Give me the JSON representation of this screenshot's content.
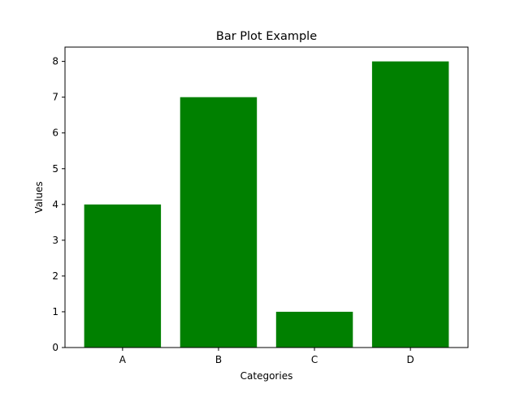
{
  "chart_data": {
    "type": "bar",
    "title": "Bar Plot Example",
    "xlabel": "Categories",
    "ylabel": "Values",
    "categories": [
      "A",
      "B",
      "C",
      "D"
    ],
    "values": [
      4,
      7,
      1,
      8
    ],
    "ylim": [
      0,
      8.4
    ],
    "yticks": [
      "0",
      "1",
      "2",
      "3",
      "4",
      "5",
      "6",
      "7",
      "8"
    ],
    "bar_color": "#008000",
    "grid": false
  }
}
